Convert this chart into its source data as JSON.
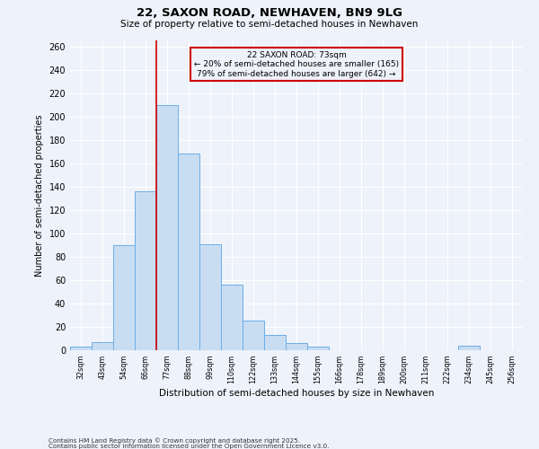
{
  "title": "22, SAXON ROAD, NEWHAVEN, BN9 9LG",
  "subtitle": "Size of property relative to semi-detached houses in Newhaven",
  "xlabel": "Distribution of semi-detached houses by size in Newhaven",
  "ylabel": "Number of semi-detached properties",
  "bin_labels": [
    "32sqm",
    "43sqm",
    "54sqm",
    "66sqm",
    "77sqm",
    "88sqm",
    "99sqm",
    "110sqm",
    "122sqm",
    "133sqm",
    "144sqm",
    "155sqm",
    "166sqm",
    "178sqm",
    "189sqm",
    "200sqm",
    "211sqm",
    "222sqm",
    "234sqm",
    "245sqm",
    "256sqm"
  ],
  "bar_values": [
    3,
    7,
    90,
    136,
    210,
    168,
    91,
    56,
    25,
    13,
    6,
    3,
    0,
    0,
    0,
    0,
    0,
    0,
    4,
    0,
    0
  ],
  "bar_color": "#c9ddf2",
  "bar_edge_color": "#6aaee8",
  "vline_color": "#cc0000",
  "annotation_title": "22 SAXON ROAD: 73sqm",
  "annotation_line1": "← 20% of semi-detached houses are smaller (165)",
  "annotation_line2": "79% of semi-detached houses are larger (642) →",
  "annotation_box_color": "#cc0000",
  "ylim": [
    0,
    265
  ],
  "yticks": [
    0,
    20,
    40,
    60,
    80,
    100,
    120,
    140,
    160,
    180,
    200,
    220,
    240,
    260
  ],
  "footnote1": "Contains HM Land Registry data © Crown copyright and database right 2025.",
  "footnote2": "Contains public sector information licensed under the Open Government Licence v3.0.",
  "bg_color": "#eef2fa"
}
